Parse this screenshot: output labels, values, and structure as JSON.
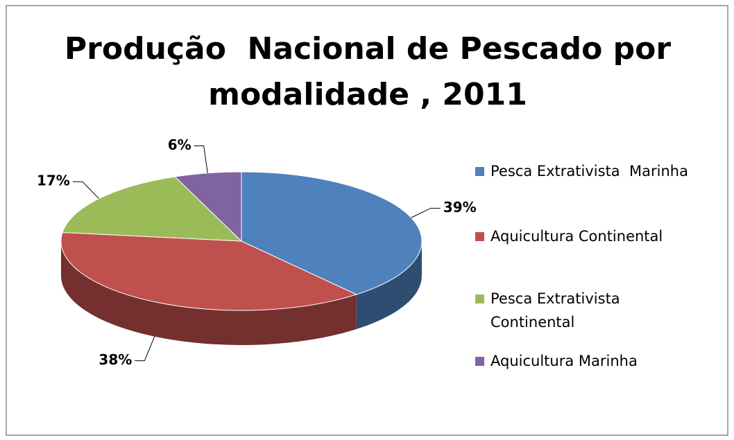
{
  "chart_data": {
    "type": "pie3d",
    "title": "Produção  Nacional de Pescado por modalidade , 2011",
    "categories": [
      "Pesca Extrativista  Marinha",
      "Aquicultura Continental",
      "Pesca Extrativista Continental",
      "Aquicultura Marinha"
    ],
    "values": [
      39,
      38,
      17,
      6
    ],
    "value_labels": [
      "39%",
      "38%",
      "17%",
      "6%"
    ],
    "colors": [
      "#4f81bd",
      "#c0504d",
      "#9bbb59",
      "#8064a2"
    ],
    "legend": "right"
  }
}
